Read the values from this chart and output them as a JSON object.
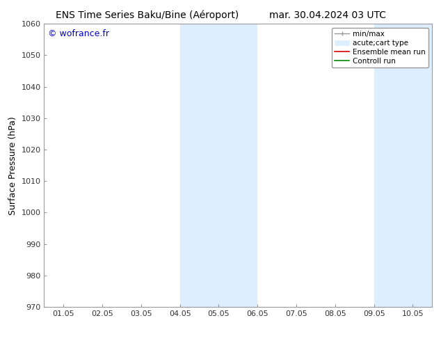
{
  "title_left": "ENS Time Series Baku/Bine (Aéroport)",
  "title_right": "mar. 30.04.2024 03 UTC",
  "ylabel": "Surface Pressure (hPa)",
  "ylim": [
    970,
    1060
  ],
  "yticks": [
    970,
    980,
    990,
    1000,
    1010,
    1020,
    1030,
    1040,
    1050,
    1060
  ],
  "xtick_labels": [
    "01.05",
    "02.05",
    "03.05",
    "04.05",
    "05.05",
    "06.05",
    "07.05",
    "08.05",
    "09.05",
    "10.05"
  ],
  "shaded_regions": [
    {
      "xstart": 3,
      "xend": 5,
      "color": "#ddeeff"
    },
    {
      "xstart": 8,
      "xend": 10,
      "color": "#ddeeff"
    }
  ],
  "watermark": "© wofrance.fr",
  "watermark_color": "#0000cc",
  "watermark_fontsize": 9,
  "bg_color": "#ffffff",
  "spine_color": "#999999",
  "tick_color": "#333333",
  "title_fontsize": 10,
  "axis_label_fontsize": 9,
  "tick_fontsize": 8,
  "legend_fontsize": 7.5
}
